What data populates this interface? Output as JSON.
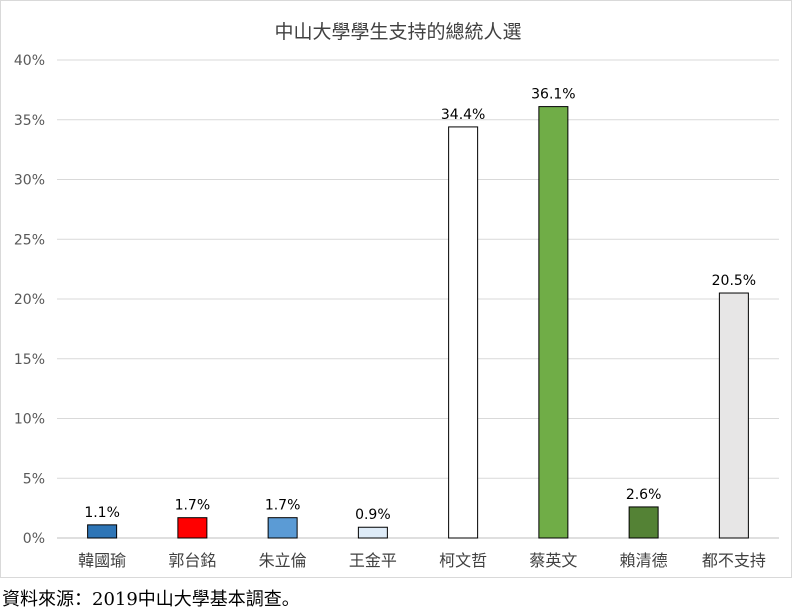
{
  "chart_data": {
    "type": "bar",
    "title": "中山大學學生支持的總統人選",
    "xlabel": "",
    "ylabel": "",
    "categories": [
      "韓國瑜",
      "郭台銘",
      "朱立倫",
      "王金平",
      "柯文哲",
      "蔡英文",
      "賴清德",
      "都不支持"
    ],
    "values": [
      1.1,
      1.7,
      1.7,
      0.9,
      34.4,
      36.1,
      2.6,
      20.5
    ],
    "value_labels": [
      "1.1%",
      "1.7%",
      "1.7%",
      "0.9%",
      "34.4%",
      "36.1%",
      "2.6%",
      "20.5%"
    ],
    "bar_colors": [
      "#2e75b6",
      "#ff0000",
      "#5b9bd5",
      "#deebf7",
      "#ffffff",
      "#70ad47",
      "#548235",
      "#e7e6e6"
    ],
    "ylim": [
      0,
      40
    ],
    "yticks": [
      0,
      5,
      10,
      15,
      20,
      25,
      30,
      35,
      40
    ],
    "ytick_labels": [
      "0%",
      "5%",
      "10%",
      "15%",
      "20%",
      "25%",
      "30%",
      "35%",
      "40%"
    ],
    "grid": true,
    "legend": "none"
  },
  "source_note": "資料來源：2019中山大學基本調查。"
}
